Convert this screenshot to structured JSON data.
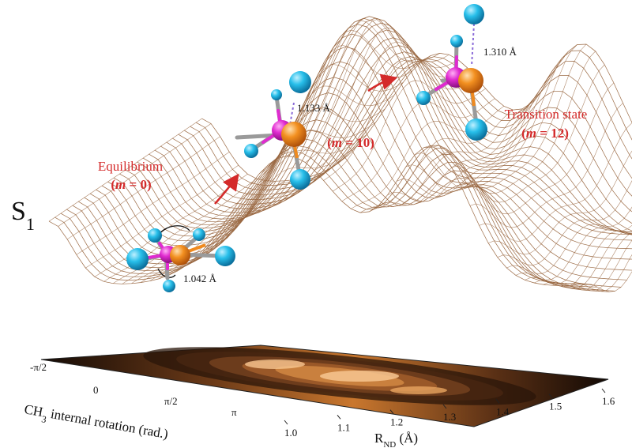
{
  "surface_label": {
    "main": "S",
    "sub": "1"
  },
  "states": {
    "equilibrium": {
      "name": "Equilibrium",
      "m_letter": "m",
      "m_rest": " = 0)",
      "open": "(",
      "bond": "1.042 Å"
    },
    "intermediate": {
      "m_letter": "m",
      "m_rest": " = 10)",
      "open": "(",
      "bond": "1.133 Å"
    },
    "transition": {
      "name": "Transition state",
      "m_letter": "m",
      "m_rest": " = 12)",
      "open": "(",
      "bond": "1.310 Å"
    }
  },
  "axes": {
    "rotation": {
      "label_prefix": "CH",
      "label_sub": "3",
      "label_suffix": " internal rotation (rad.)",
      "ticks": [
        "-π/2",
        "0",
        "π/2",
        "π"
      ]
    },
    "distance": {
      "label_main": "R",
      "label_sub": "ND",
      "label_suffix": " (Å)",
      "ticks": [
        "1.0",
        "1.1",
        "1.2",
        "1.3",
        "1.4",
        "1.5",
        "1.6"
      ]
    }
  },
  "colors": {
    "mesh": "#9b6a44",
    "hydrogen": "#1fb8e6",
    "nitrogen": "#f08a1e",
    "carbon": "#e02bd0",
    "annotation": "#d42a2a",
    "contour_dark": "#1a0f08",
    "contour_light": "#f7c690"
  }
}
